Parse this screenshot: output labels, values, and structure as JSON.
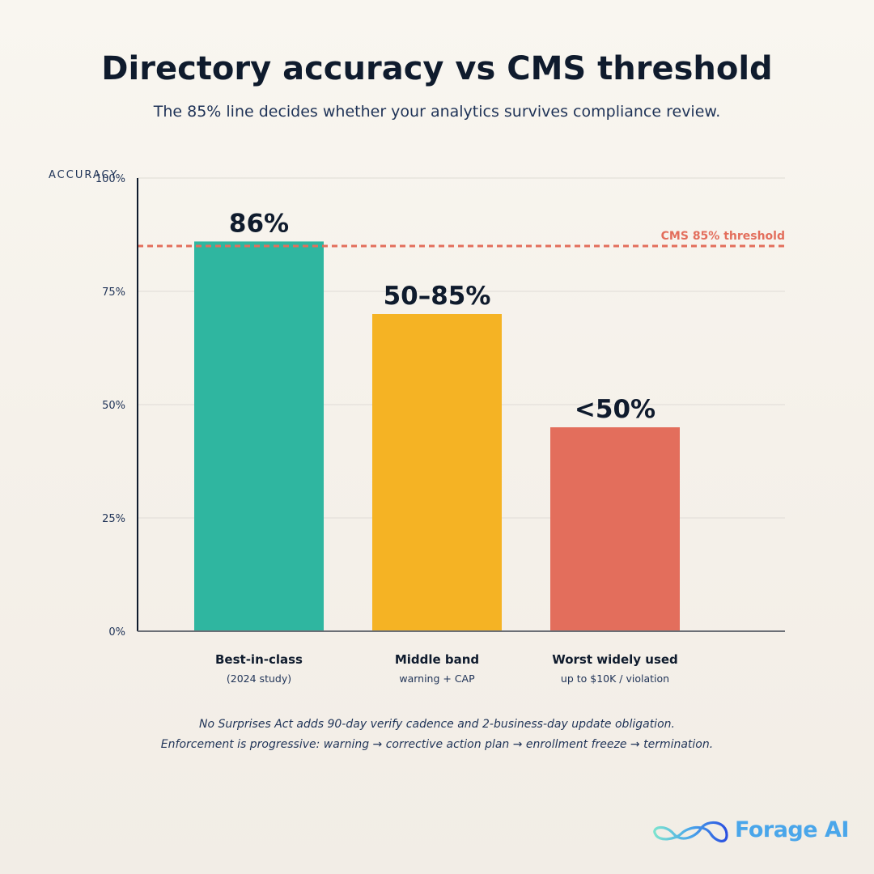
{
  "header": {
    "title": "Directory accuracy vs CMS threshold",
    "subtitle": "The 85% line decides whether your analytics survives compliance review."
  },
  "chart_data": {
    "type": "bar",
    "title": "Directory accuracy vs CMS threshold",
    "ylabel": "ACCURACY",
    "ylim": [
      0,
      100
    ],
    "yticks": [
      0,
      25,
      50,
      75,
      100
    ],
    "ytick_labels": [
      "0%",
      "25%",
      "50%",
      "75%",
      "100%"
    ],
    "grid": true,
    "categories": [
      "Best-in-class",
      "Middle band",
      "Worst widely used"
    ],
    "category_sublabels": [
      "(2024 study)",
      "warning + CAP",
      "up to $10K / violation"
    ],
    "values": [
      86,
      70,
      45
    ],
    "data_labels": [
      "86%",
      "50–85%",
      "<50%"
    ],
    "bar_colors": [
      "#2fb6a0",
      "#f5b324",
      "#e36e5c"
    ],
    "threshold": {
      "value": 85,
      "label": "CMS 85% threshold",
      "color": "#e36e5c"
    }
  },
  "footnotes": [
    "No Surprises Act adds 90-day verify cadence and 2-business-day update obligation.",
    "Enforcement is progressive: warning → corrective action plan → enrollment freeze → termination."
  ],
  "logo": {
    "text": "Forage AI",
    "icon": "infinity-wave-icon",
    "color": "#4aa6ea"
  }
}
